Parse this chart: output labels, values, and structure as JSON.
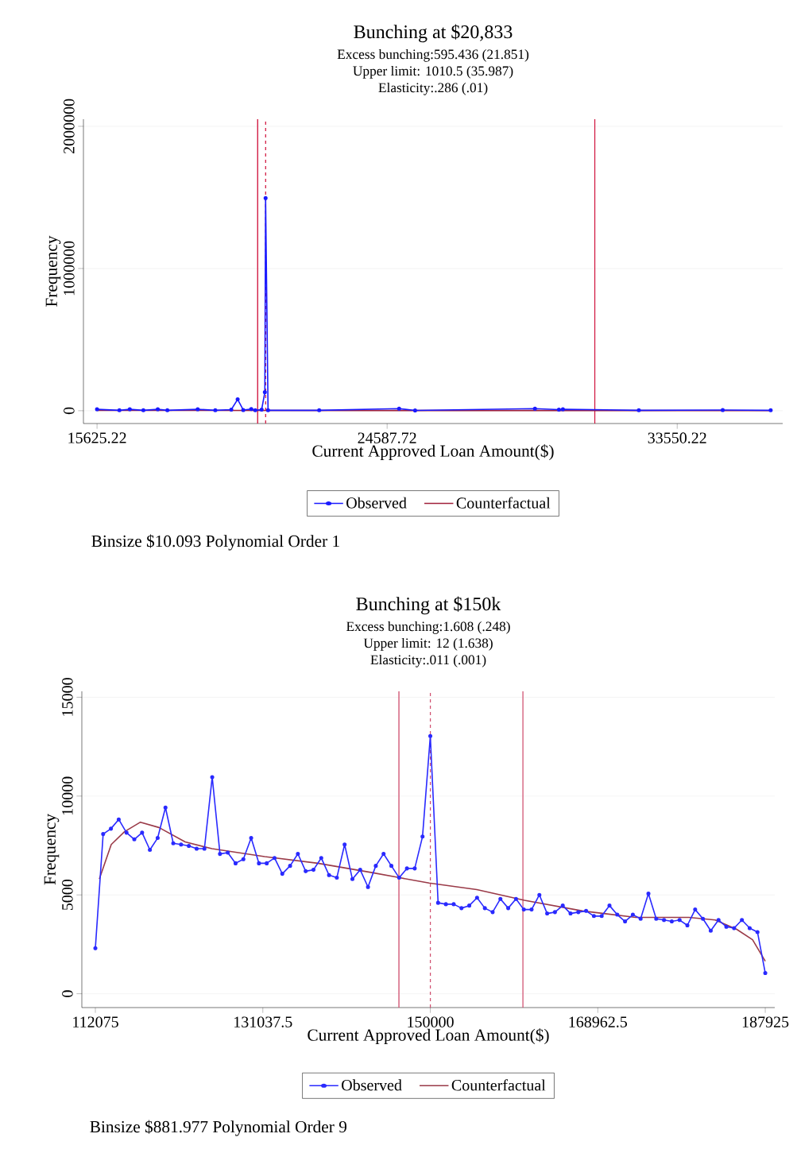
{
  "chart_data": [
    {
      "type": "line",
      "title": "Bunching at $20,833",
      "xlabel": "Current Approved Loan Amount($)",
      "ylabel": "Frequency",
      "annotations": [
        "Excess bunching:595.436 (21.851)",
        "Upper limit: 1010.5 (35.987)",
        "Elasticity:.286 (.01)",
        "Binsize $10.093  Polynomial Order 1"
      ],
      "xlim": [
        15205,
        36810
      ],
      "ylim": [
        -90000,
        2050000
      ],
      "xticks": [
        15625.22,
        24587.72,
        33550.22
      ],
      "yticks": [
        0,
        1000000,
        2000000
      ],
      "grid": "y",
      "legend": "bottom",
      "series": [
        {
          "name": "Observed",
          "color": "#1a1aff",
          "marker": "circle",
          "line_style": "solid",
          "x": [
            15625,
            16316,
            16637,
            17057,
            17502,
            17798,
            18736,
            19279,
            19773,
            19970,
            20143,
            20390,
            20514,
            20711,
            20810,
            20833,
            20909,
            22489,
            24958,
            25452,
            29155,
            29896,
            30019,
            32365,
            34957,
            36439
          ],
          "values": [
            10000,
            3000,
            10000,
            3000,
            10000,
            3000,
            10000,
            3000,
            8000,
            80000,
            5000,
            12000,
            3000,
            8000,
            130000,
            1495000,
            3000,
            3000,
            15000,
            2000,
            15000,
            8000,
            10000,
            3000,
            5000,
            3000
          ]
        },
        {
          "name": "Counterfactual",
          "color": "#a0203a",
          "marker": "none",
          "line_style": "solid",
          "x": [
            15625,
            36439
          ],
          "values": [
            2000,
            1000
          ]
        }
      ],
      "ref_lines": [
        {
          "axis": "x",
          "value": 20588,
          "color": "#d0103a",
          "line_style": "solid"
        },
        {
          "axis": "x",
          "value": 20833,
          "color": "#d0103a",
          "line_style": "dashed"
        },
        {
          "axis": "x",
          "value": 31007,
          "color": "#d0103a",
          "line_style": "solid"
        }
      ]
    },
    {
      "type": "line",
      "title": "Bunching at $150k",
      "xlabel": "Current Approved Loan Amount($)",
      "ylabel": "Frequency",
      "annotations": [
        "Excess bunching:1.608 (.248)",
        "Upper limit: 12 (1.638)",
        "Elasticity:.011 (.001)",
        "Binsize $881.977  Polynomial Order 9"
      ],
      "xlim": [
        110545,
        189000
      ],
      "ylim": [
        -700,
        15300
      ],
      "xticks": [
        112075,
        131037.5,
        150000,
        168962.5,
        187925
      ],
      "yticks": [
        0,
        5000,
        10000,
        15000
      ],
      "grid": "y",
      "legend": "bottom",
      "series": [
        {
          "name": "Observed",
          "color": "#2a2aff",
          "marker": "circle",
          "line_style": "solid",
          "x": [
            112075,
            112957,
            113839,
            114721,
            115603,
            116485,
            117367,
            118249,
            119131,
            120013,
            120895,
            121777,
            122659,
            123541,
            124423,
            125305,
            126187,
            127069,
            127951,
            128833,
            129715,
            130597,
            131478,
            132360,
            133242,
            134124,
            135006,
            135888,
            136770,
            137652,
            138534,
            139416,
            140298,
            141180,
            142062,
            142944,
            143826,
            144708,
            145590,
            146472,
            147354,
            148236,
            149118,
            150000,
            150882,
            151764,
            152646,
            153528,
            154410,
            155292,
            156174,
            157056,
            157938,
            158820,
            159702,
            160584,
            161466,
            162348,
            163230,
            164112,
            164994,
            165876,
            166758,
            167640,
            168522,
            169403,
            170285,
            171167,
            172049,
            172931,
            173813,
            174695,
            175577,
            176459,
            177341,
            178223,
            179105,
            179987,
            180869,
            181751,
            182633,
            183515,
            184397,
            185279,
            186161,
            187043,
            187925
          ],
          "values": [
            2300,
            8080,
            8350,
            8820,
            8150,
            7810,
            8150,
            7280,
            7880,
            9420,
            7610,
            7550,
            7480,
            7340,
            7340,
            10960,
            7075,
            7140,
            6600,
            6810,
            7880,
            6600,
            6600,
            6870,
            6070,
            6470,
            7080,
            6200,
            6270,
            6870,
            6000,
            5870,
            7550,
            5800,
            6270,
            5400,
            6470,
            7080,
            6470,
            5870,
            6340,
            6340,
            7950,
            13040,
            4600,
            4530,
            4530,
            4330,
            4460,
            4860,
            4330,
            4130,
            4800,
            4330,
            4800,
            4260,
            4260,
            5000,
            4060,
            4130,
            4460,
            4060,
            4130,
            4190,
            3930,
            3930,
            4460,
            4000,
            3660,
            4000,
            3790,
            5070,
            3790,
            3730,
            3660,
            3730,
            3460,
            4260,
            3790,
            3190,
            3730,
            3390,
            3320,
            3730,
            3320,
            3120,
            1045
          ]
        },
        {
          "name": "Counterfactual",
          "color": "#9a3a48",
          "marker": "none",
          "line_style": "solid",
          "x": [
            112525,
            113875,
            115377,
            117177,
            119273,
            122243,
            125275,
            131241,
            137269,
            143270,
            146537,
            149866,
            155264,
            160664,
            167233,
            173261,
            179290,
            182259,
            184688,
            186488,
            187925
          ],
          "values": [
            5800,
            7550,
            8200,
            8680,
            8410,
            7680,
            7340,
            6940,
            6600,
            6140,
            5870,
            5600,
            5270,
            4730,
            4190,
            3860,
            3860,
            3730,
            3260,
            2730,
            1650
          ]
        }
      ],
      "ref_lines": [
        {
          "axis": "x",
          "value": 146446,
          "color": "#d05070",
          "line_style": "solid"
        },
        {
          "axis": "x",
          "value": 150000,
          "color": "#d05070",
          "line_style": "dashed"
        },
        {
          "axis": "x",
          "value": 160482,
          "color": "#d05070",
          "line_style": "solid"
        }
      ]
    }
  ]
}
